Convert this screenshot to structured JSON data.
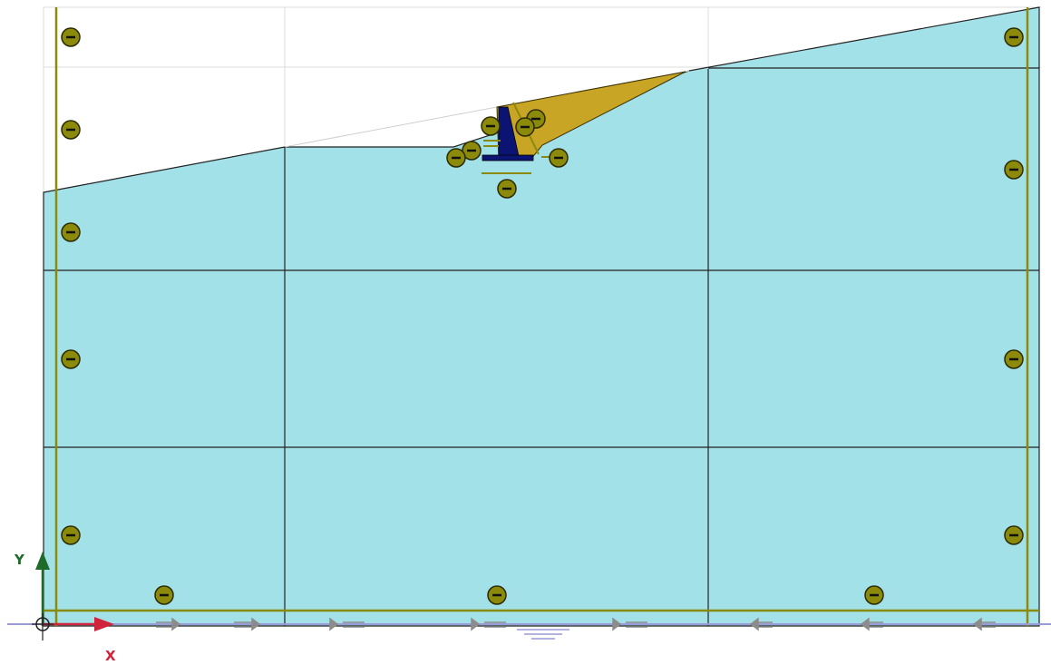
{
  "viewport": {
    "axes": {
      "x_label": "X",
      "y_label": "Y",
      "x_color": "#d0233c",
      "y_color": "#1f6b2a"
    },
    "colors": {
      "soil_fill": "#a3e1e8",
      "soil_stroke": "#222222",
      "fill_wedge": "#c9a526",
      "wall": "#0b1473",
      "boundary_line": "#8c8a0a",
      "constraint_symbol_fill": "#8c8a0a",
      "grid_line": "#dcdcdc",
      "water_line": "#9a9ad8",
      "load_arrow": "#8c8c8c"
    },
    "symbols": {
      "constraint_icon": "minus-circle-icon",
      "origin_icon": "origin-target-icon",
      "water_table_icon": "water-table-icon",
      "arrow_icon": "double-arrow-icon"
    }
  }
}
